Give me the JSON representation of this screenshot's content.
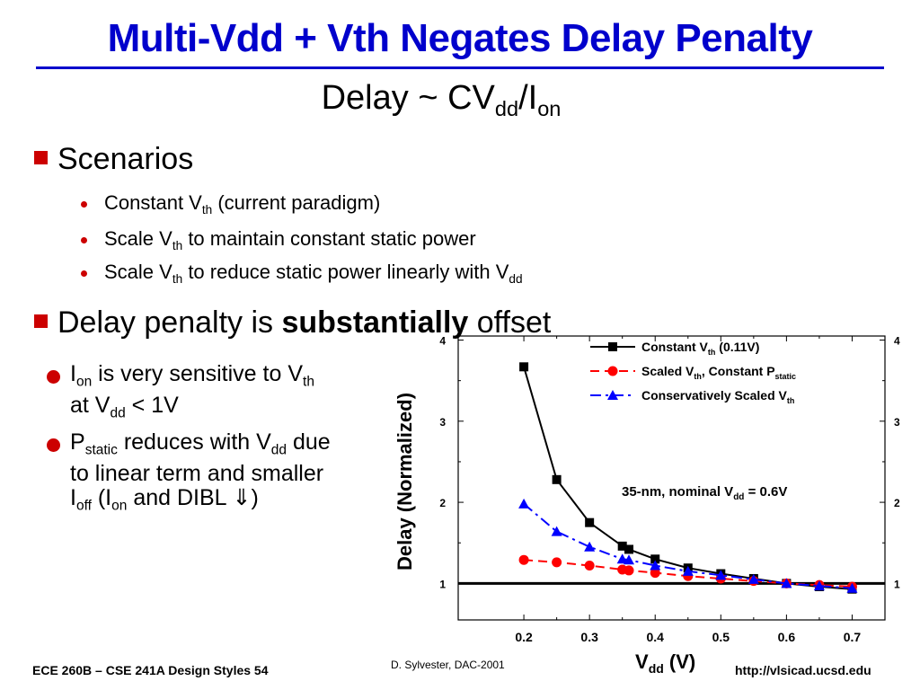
{
  "slide": {
    "title": "Multi-Vdd + Vth Negates Delay Penalty",
    "subtitle": {
      "base": "Delay ~ CV",
      "sub1": "dd",
      "mid": "/I",
      "sub2": "on"
    }
  },
  "bullets": {
    "scenarios": "Scenarios",
    "items": [
      {
        "pre": "Constant V",
        "sub": "th",
        "post": " (current paradigm)"
      },
      {
        "pre": "Scale V",
        "sub": "th",
        "post": " to maintain constant static power"
      },
      {
        "pre": "Scale V",
        "sub": "th",
        "post": " to reduce static power linearly with V",
        "sub2": "dd"
      }
    ],
    "penalty": {
      "pre": "Delay penalty is ",
      "bold": "substantially",
      "post": " offset"
    },
    "left1": {
      "a": "I",
      "a_sub": "on",
      "b": " is very sensitive to V",
      "b_sub": "th",
      "c": "at V",
      "c_sub": "dd",
      "d": " < 1V"
    },
    "left2": {
      "a": "P",
      "a_sub": "static",
      "b": " reduces with V",
      "b_sub": "dd",
      "b2": " due",
      "line2": "to linear term and smaller",
      "c": "I",
      "c_sub": "off",
      "d": " (I",
      "d_sub": "on",
      "e": " and DIBL ",
      "arrow": "⇓",
      "f": ")"
    }
  },
  "footer": {
    "left": "ECE 260B – CSE 241A Design Styles 54",
    "credit": "D. Sylvester, DAC-2001",
    "right": "http://vlsicad.ucsd.edu"
  },
  "chart_data": {
    "type": "line",
    "ylabel": "Delay (Normalized)",
    "xlabel": {
      "base": "V",
      "sub": "dd",
      "post": " (V)"
    },
    "xlim": [
      0.1,
      0.75
    ],
    "ylim": [
      0.55,
      4.05
    ],
    "xticks": [
      0.2,
      0.3,
      0.4,
      0.5,
      0.6,
      0.7
    ],
    "xtick_labels": [
      "0.2",
      "0.3",
      "0.4",
      "0.5",
      "0.6",
      "0.7"
    ],
    "yticks": [
      1,
      2,
      3,
      4
    ],
    "ytick_labels": [
      "1",
      "2",
      "3",
      "4"
    ],
    "reference_line_y": 1,
    "annotation": {
      "pre": "35-nm, nominal V",
      "sub": "dd",
      "post": " = 0.6V"
    },
    "grid": false,
    "legend_position": "top-right",
    "series": [
      {
        "key": "constant",
        "color": "#000000",
        "marker": "square",
        "dash": "solid",
        "legend": {
          "pre": "Constant V",
          "sub": "th",
          "post": " (0.11V)"
        },
        "x": [
          0.2,
          0.25,
          0.3,
          0.35,
          0.36,
          0.4,
          0.45,
          0.5,
          0.55,
          0.6,
          0.65,
          0.7
        ],
        "y": [
          3.67,
          2.28,
          1.75,
          1.46,
          1.42,
          1.3,
          1.19,
          1.12,
          1.06,
          1.0,
          0.96,
          0.93
        ]
      },
      {
        "key": "scaled",
        "color": "#ff0000",
        "marker": "circle",
        "dash": "dash",
        "legend": {
          "pre": "Scaled V",
          "sub": "th",
          "post": ", Constant P",
          "sub2": "static"
        },
        "x": [
          0.2,
          0.25,
          0.3,
          0.35,
          0.36,
          0.4,
          0.45,
          0.5,
          0.55,
          0.6,
          0.65,
          0.7
        ],
        "y": [
          1.29,
          1.26,
          1.22,
          1.17,
          1.16,
          1.13,
          1.09,
          1.06,
          1.03,
          1.0,
          0.98,
          0.96
        ]
      },
      {
        "key": "conservative",
        "color": "#0000ff",
        "marker": "triangle",
        "dash": "dashdot",
        "legend": {
          "pre": "Conservatively Scaled V",
          "sub": "th",
          "post": ""
        },
        "x": [
          0.2,
          0.25,
          0.3,
          0.35,
          0.36,
          0.4,
          0.45,
          0.5,
          0.55,
          0.6,
          0.65,
          0.7
        ],
        "y": [
          1.98,
          1.64,
          1.45,
          1.3,
          1.29,
          1.22,
          1.15,
          1.1,
          1.05,
          1.0,
          0.97,
          0.94
        ]
      }
    ]
  }
}
